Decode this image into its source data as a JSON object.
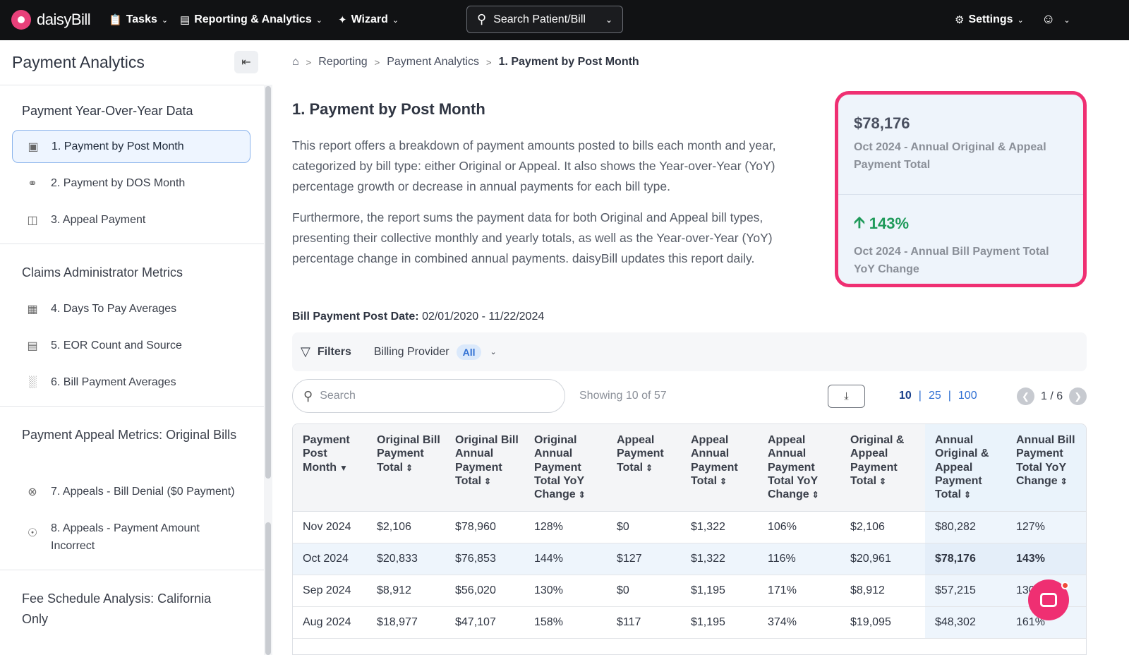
{
  "nav": {
    "logo_text": "daisyBill",
    "tasks": "Tasks",
    "reporting": "Reporting & Analytics",
    "wizard": "Wizard",
    "search": "Search Patient/Bill",
    "settings": "Settings"
  },
  "sidebar": {
    "title": "Payment Analytics",
    "sections": [
      {
        "heading": "Payment Year-Over-Year Data",
        "items": [
          {
            "label": "1. Payment by Post Month",
            "icon": "dollar-doc-icon"
          },
          {
            "label": "2. Payment by DOS Month",
            "icon": "link-icon"
          },
          {
            "label": "3. Appeal Payment",
            "icon": "doc-search-icon"
          }
        ]
      },
      {
        "heading": "Claims Administrator Metrics",
        "items": [
          {
            "label": "4. Days To Pay Averages",
            "icon": "calendar-icon"
          },
          {
            "label": "5. EOR Count and Source",
            "icon": "document-icon"
          },
          {
            "label": "6. Bill Payment Averages",
            "icon": "bar-chart-icon"
          }
        ]
      },
      {
        "heading": "Payment Appeal Metrics: Original Bills",
        "items": [
          {
            "label": "7. Appeals - Bill Denial ($0 Payment)",
            "icon": "x-circle-icon"
          },
          {
            "label": "8. Appeals - Payment Amount Incorrect",
            "icon": "dollar-circle-icon"
          }
        ]
      },
      {
        "heading": "Fee Schedule Analysis: California Only",
        "items": []
      }
    ]
  },
  "breadcrumb": [
    "Reporting",
    "Payment Analytics",
    "1. Payment by Post Month"
  ],
  "main": {
    "title": "1. Payment by Post Month",
    "desc1": "This report offers a breakdown of payment amounts posted to bills each month and year, categorized by bill type: either Original or Appeal. It also shows the Year-over-Year (YoY) percentage growth or decrease in annual payments for each bill type.",
    "desc2": "Furthermore, the report sums the payment data for both Original and Appeal bill types, presenting their collective monthly and yearly totals, as well as the Year-over-Year (YoY) percentage change in combined annual payments. daisyBill updates this report daily.",
    "date_label": "Bill Payment Post Date:",
    "date_value": "02/01/2020 - 11/22/2024"
  },
  "kpi": {
    "value1": "$78,176",
    "label1": "Oct 2024 - Annual Original & Appeal Payment Total",
    "value2": "143%",
    "label2": "Oct 2024 - Annual Bill Payment Total YoY Change",
    "accent": "#ef2f72"
  },
  "filters": {
    "label": "Filters",
    "provider_label": "Billing Provider",
    "provider_value": "All"
  },
  "toolbar": {
    "search_placeholder": "Search",
    "showing": "Showing 10 of 57",
    "page_sizes": [
      "10",
      "25",
      "100"
    ],
    "page_label": "1 / 6"
  },
  "table": {
    "headers": [
      "Payment Post Month",
      "Original Bill Payment Total",
      "Original Bill Annual Payment Total",
      "Original Annual Payment Total YoY Change",
      "Appeal Payment Total",
      "Appeal Annual Payment Total",
      "Appeal Annual Payment Total YoY Change",
      "Original & Appeal Payment Total",
      "Annual Original & Appeal Payment Total",
      "Annual Bill Payment Total YoY Change"
    ],
    "rows": [
      [
        "Nov 2024",
        "$2,106",
        "$78,960",
        "128%",
        "$0",
        "$1,322",
        "106%",
        "$2,106",
        "$80,282",
        "127%"
      ],
      [
        "Oct 2024",
        "$20,833",
        "$76,853",
        "144%",
        "$127",
        "$1,322",
        "116%",
        "$20,961",
        "$78,176",
        "143%"
      ],
      [
        "Sep 2024",
        "$8,912",
        "$56,020",
        "130%",
        "$0",
        "$1,195",
        "171%",
        "$8,912",
        "$57,215",
        "130%"
      ],
      [
        "Aug 2024",
        "$18,977",
        "$47,107",
        "158%",
        "$117",
        "$1,195",
        "374%",
        "$19,095",
        "$48,302",
        "161%"
      ]
    ]
  }
}
